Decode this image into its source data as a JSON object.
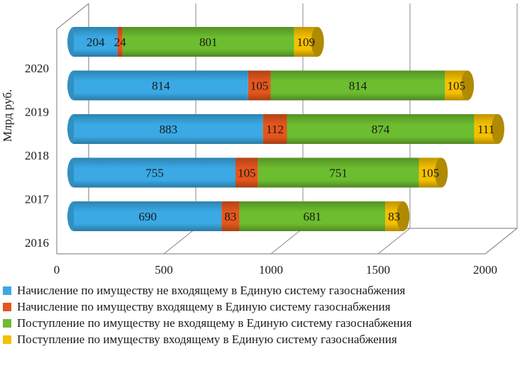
{
  "chart_data": {
    "type": "bar",
    "orientation": "horizontal",
    "stacked": true,
    "style": "3d-cylinder",
    "ylabel": "Млрд руб.",
    "xlabel": "",
    "xlim": [
      0,
      2000
    ],
    "xticks": [
      "0",
      "500",
      "1000",
      "1500",
      "2000"
    ],
    "categories": [
      "2016",
      "2017",
      "2018",
      "2019",
      "2020"
    ],
    "series": [
      {
        "name": "Начисление по имуществу не входящему в Единую систему газоснабжения",
        "color": "#3aa9e4",
        "values": [
          690,
          755,
          883,
          814,
          204
        ]
      },
      {
        "name": "Начисление по имуществу входящему в Единую систему газоснабжения",
        "color": "#e4561d",
        "values": [
          83,
          105,
          112,
          105,
          24
        ]
      },
      {
        "name": "Поступление по имуществу не входящему в Единую систему газоснабжения",
        "color": "#6cbd2f",
        "values": [
          681,
          751,
          874,
          814,
          801
        ]
      },
      {
        "name": "Поступление по имуществу входящему в  Единую систему газоснабжения",
        "color": "#f5c000",
        "values": [
          83,
          105,
          111,
          105,
          109
        ]
      }
    ],
    "legend_position": "bottom"
  }
}
